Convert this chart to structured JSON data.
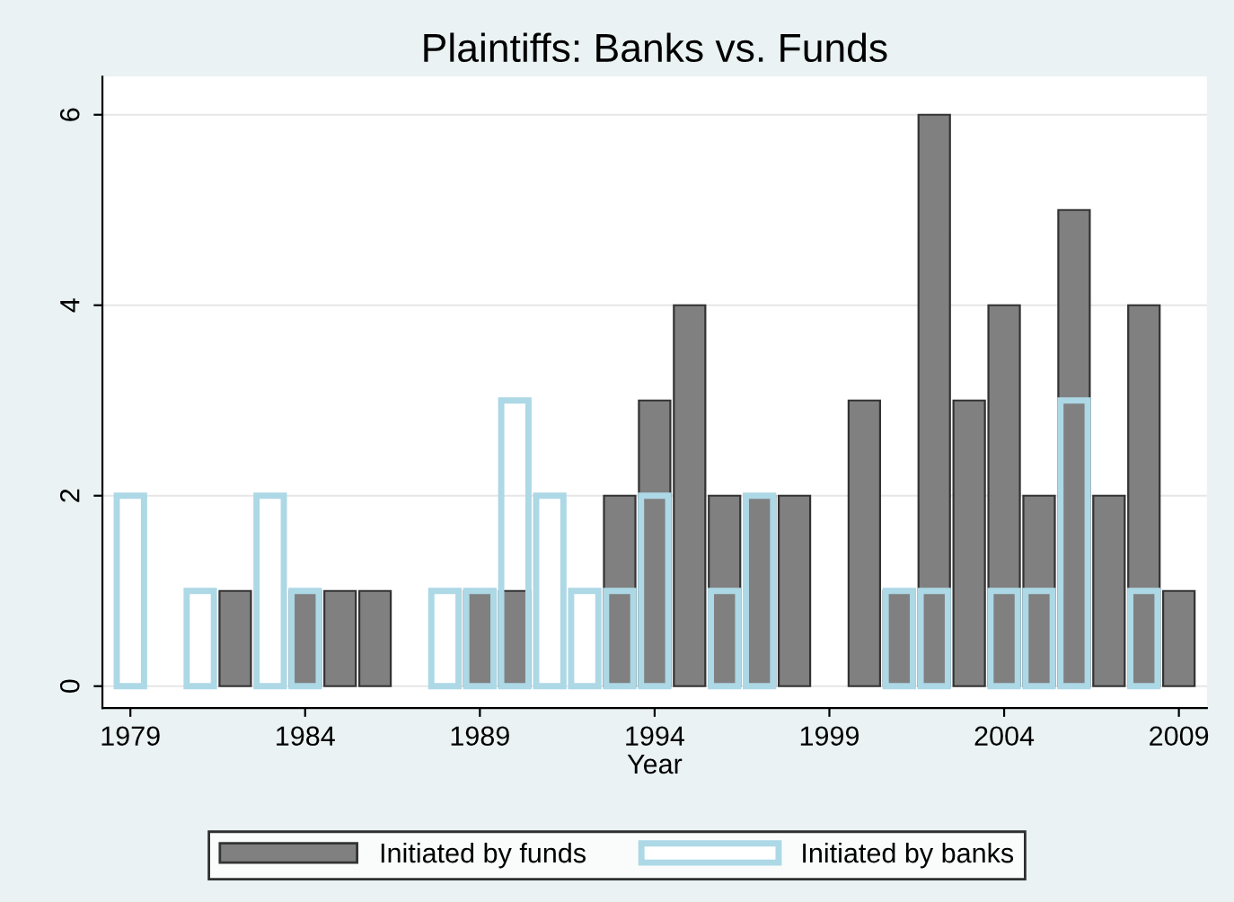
{
  "chart_data": {
    "type": "bar",
    "title": "Plaintiffs: Banks vs. Funds",
    "xlabel": "Year",
    "series": [
      {
        "name": "Initiated by funds",
        "color": "#808080",
        "x": [
          1982,
          1984,
          1985,
          1986,
          1989,
          1990,
          1993,
          1994,
          1995,
          1996,
          1997,
          1998,
          2000,
          2001,
          2002,
          2003,
          2004,
          2005,
          2006,
          2007,
          2008,
          2009
        ],
        "values": [
          1,
          1,
          1,
          1,
          1,
          1,
          2,
          3,
          4,
          2,
          2,
          2,
          3,
          1,
          6,
          3,
          4,
          2,
          5,
          2,
          4,
          1
        ]
      },
      {
        "name": "Initiated by banks",
        "color": "#add8e6",
        "x": [
          1979,
          1981,
          1983,
          1984,
          1988,
          1989,
          1990,
          1991,
          1992,
          1993,
          1994,
          1996,
          1997,
          2001,
          2002,
          2004,
          2005,
          2006,
          2008
        ],
        "values": [
          2,
          1,
          2,
          1,
          1,
          1,
          3,
          2,
          1,
          1,
          2,
          1,
          2,
          1,
          1,
          1,
          1,
          3,
          1
        ]
      }
    ],
    "xlim": [
      1978.2,
      2009.8
    ],
    "xticks": [
      1979,
      1984,
      1989,
      1994,
      1999,
      2004,
      2009
    ],
    "ylim": [
      -0.23,
      6.4
    ],
    "yticks": [
      0,
      2,
      4,
      6
    ],
    "grid": "y",
    "legend": "bottom"
  }
}
